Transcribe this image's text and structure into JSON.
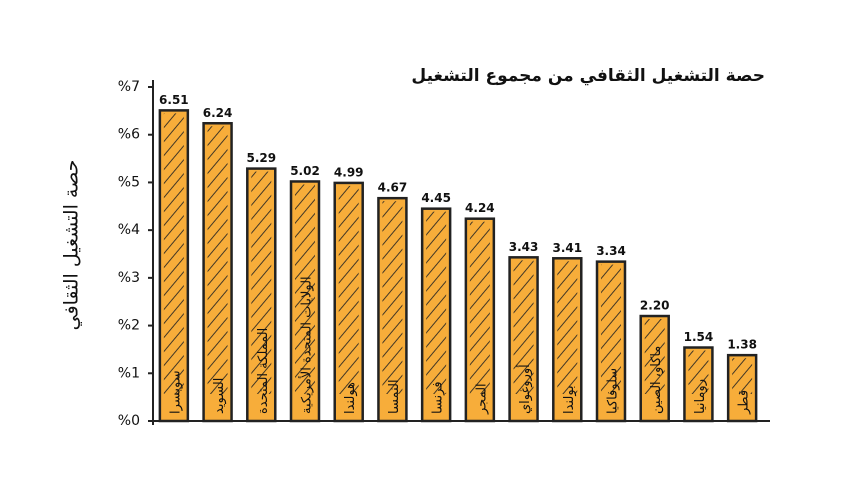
{
  "chart_data": {
    "type": "bar",
    "title": "حصة التشغيل الثقافي من مجموع التشغيل",
    "y_label": "حصة التشغيل الثقافي",
    "categories": [
      "سويسرا",
      "السويد",
      "المملكة المتحدة",
      "الولايات المتحدة الأمريكية",
      "هولندا",
      "النمسا",
      "فرنسا",
      "المجر",
      "أوروغواي",
      "بولندا",
      "سلوفاكيا",
      "ماكاو، الصين",
      "رومانيا",
      "قطر"
    ],
    "values": [
      6.51,
      6.24,
      5.29,
      5.02,
      4.99,
      4.67,
      4.45,
      4.24,
      3.43,
      3.41,
      3.34,
      2.2,
      1.54,
      1.38
    ],
    "value_labels": [
      "6.51",
      "6.24",
      "5.29",
      "5.02",
      "4.99",
      "4.67",
      "4.45",
      "4.24",
      "3.43",
      "3.41",
      "3.34",
      "2.20",
      "1.54",
      "1.38"
    ],
    "color": "#f7ad3a",
    "ylim": [
      0,
      7
    ],
    "yticks": [
      {
        "value": 0,
        "label": "%0"
      },
      {
        "value": 1,
        "label": "%1"
      },
      {
        "value": 2,
        "label": "%2"
      },
      {
        "value": 3,
        "label": "%3"
      },
      {
        "value": 4,
        "label": "%4"
      },
      {
        "value": 5,
        "label": "%5"
      },
      {
        "value": 6,
        "label": "%6"
      },
      {
        "value": 7,
        "label": "%7"
      }
    ]
  }
}
